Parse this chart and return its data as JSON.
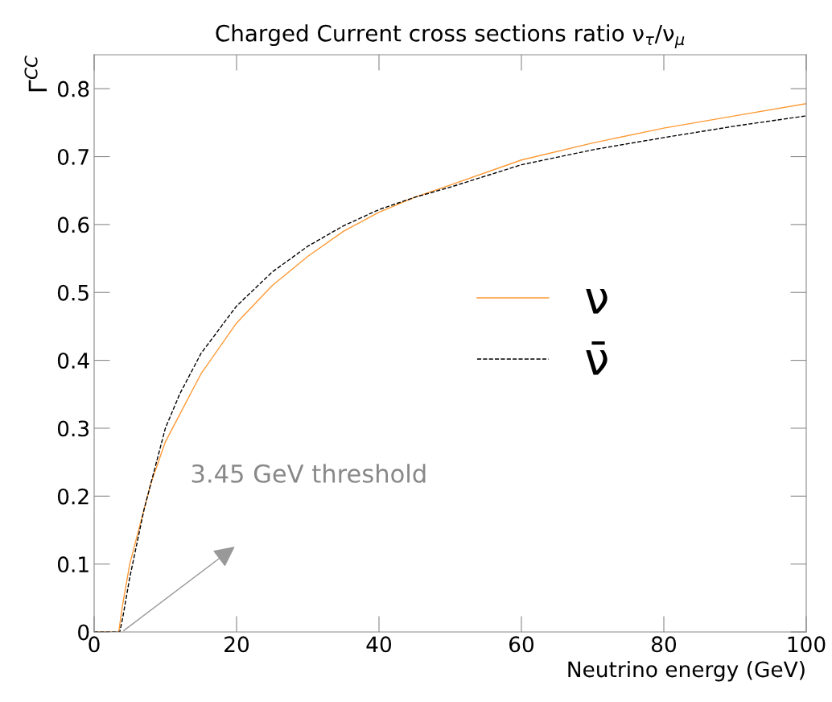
{
  "chart_data": {
    "type": "line",
    "title": "Charged Current cross sections ratio ν$_{τ}$/ν$_{μ}$",
    "xlabel": "Neutrino energy (GeV)",
    "ylabel": "Γ$^{CC}$",
    "series": [
      {
        "name": "ν",
        "color": "#ff9933",
        "line_style": "solid",
        "x": [
          0,
          3.45,
          4,
          5,
          6,
          7,
          8,
          10,
          12,
          15,
          20,
          25,
          30,
          35,
          40,
          45,
          50,
          60,
          70,
          80,
          90,
          100
        ],
        "values": [
          0,
          0,
          0.04,
          0.1,
          0.14,
          0.18,
          0.22,
          0.28,
          0.32,
          0.38,
          0.455,
          0.51,
          0.553,
          0.59,
          0.618,
          0.64,
          0.658,
          0.695,
          0.72,
          0.742,
          0.76,
          0.778
        ]
      },
      {
        "name": "ν̄",
        "color": "#000000",
        "line_style": "dashed",
        "x": [
          0,
          3.6,
          4,
          5,
          6,
          7,
          8,
          10,
          12,
          15,
          20,
          25,
          30,
          35,
          40,
          45,
          50,
          60,
          70,
          80,
          90,
          100
        ],
        "values": [
          0,
          0,
          0.02,
          0.08,
          0.13,
          0.18,
          0.22,
          0.3,
          0.35,
          0.41,
          0.48,
          0.53,
          0.568,
          0.598,
          0.622,
          0.64,
          0.655,
          0.688,
          0.71,
          0.728,
          0.745,
          0.76
        ]
      }
    ],
    "annotations": [
      "3.45 GeV threshold"
    ],
    "xlim": [
      0,
      100
    ],
    "xticks": [
      0,
      20,
      40,
      60,
      80,
      100
    ],
    "ylim": [
      0,
      0.85
    ],
    "yticks": [
      0,
      0.1,
      0.2,
      0.3,
      0.4,
      0.5,
      0.6,
      0.7,
      0.8
    ],
    "grid": false,
    "legend": "right",
    "marker": "none"
  }
}
